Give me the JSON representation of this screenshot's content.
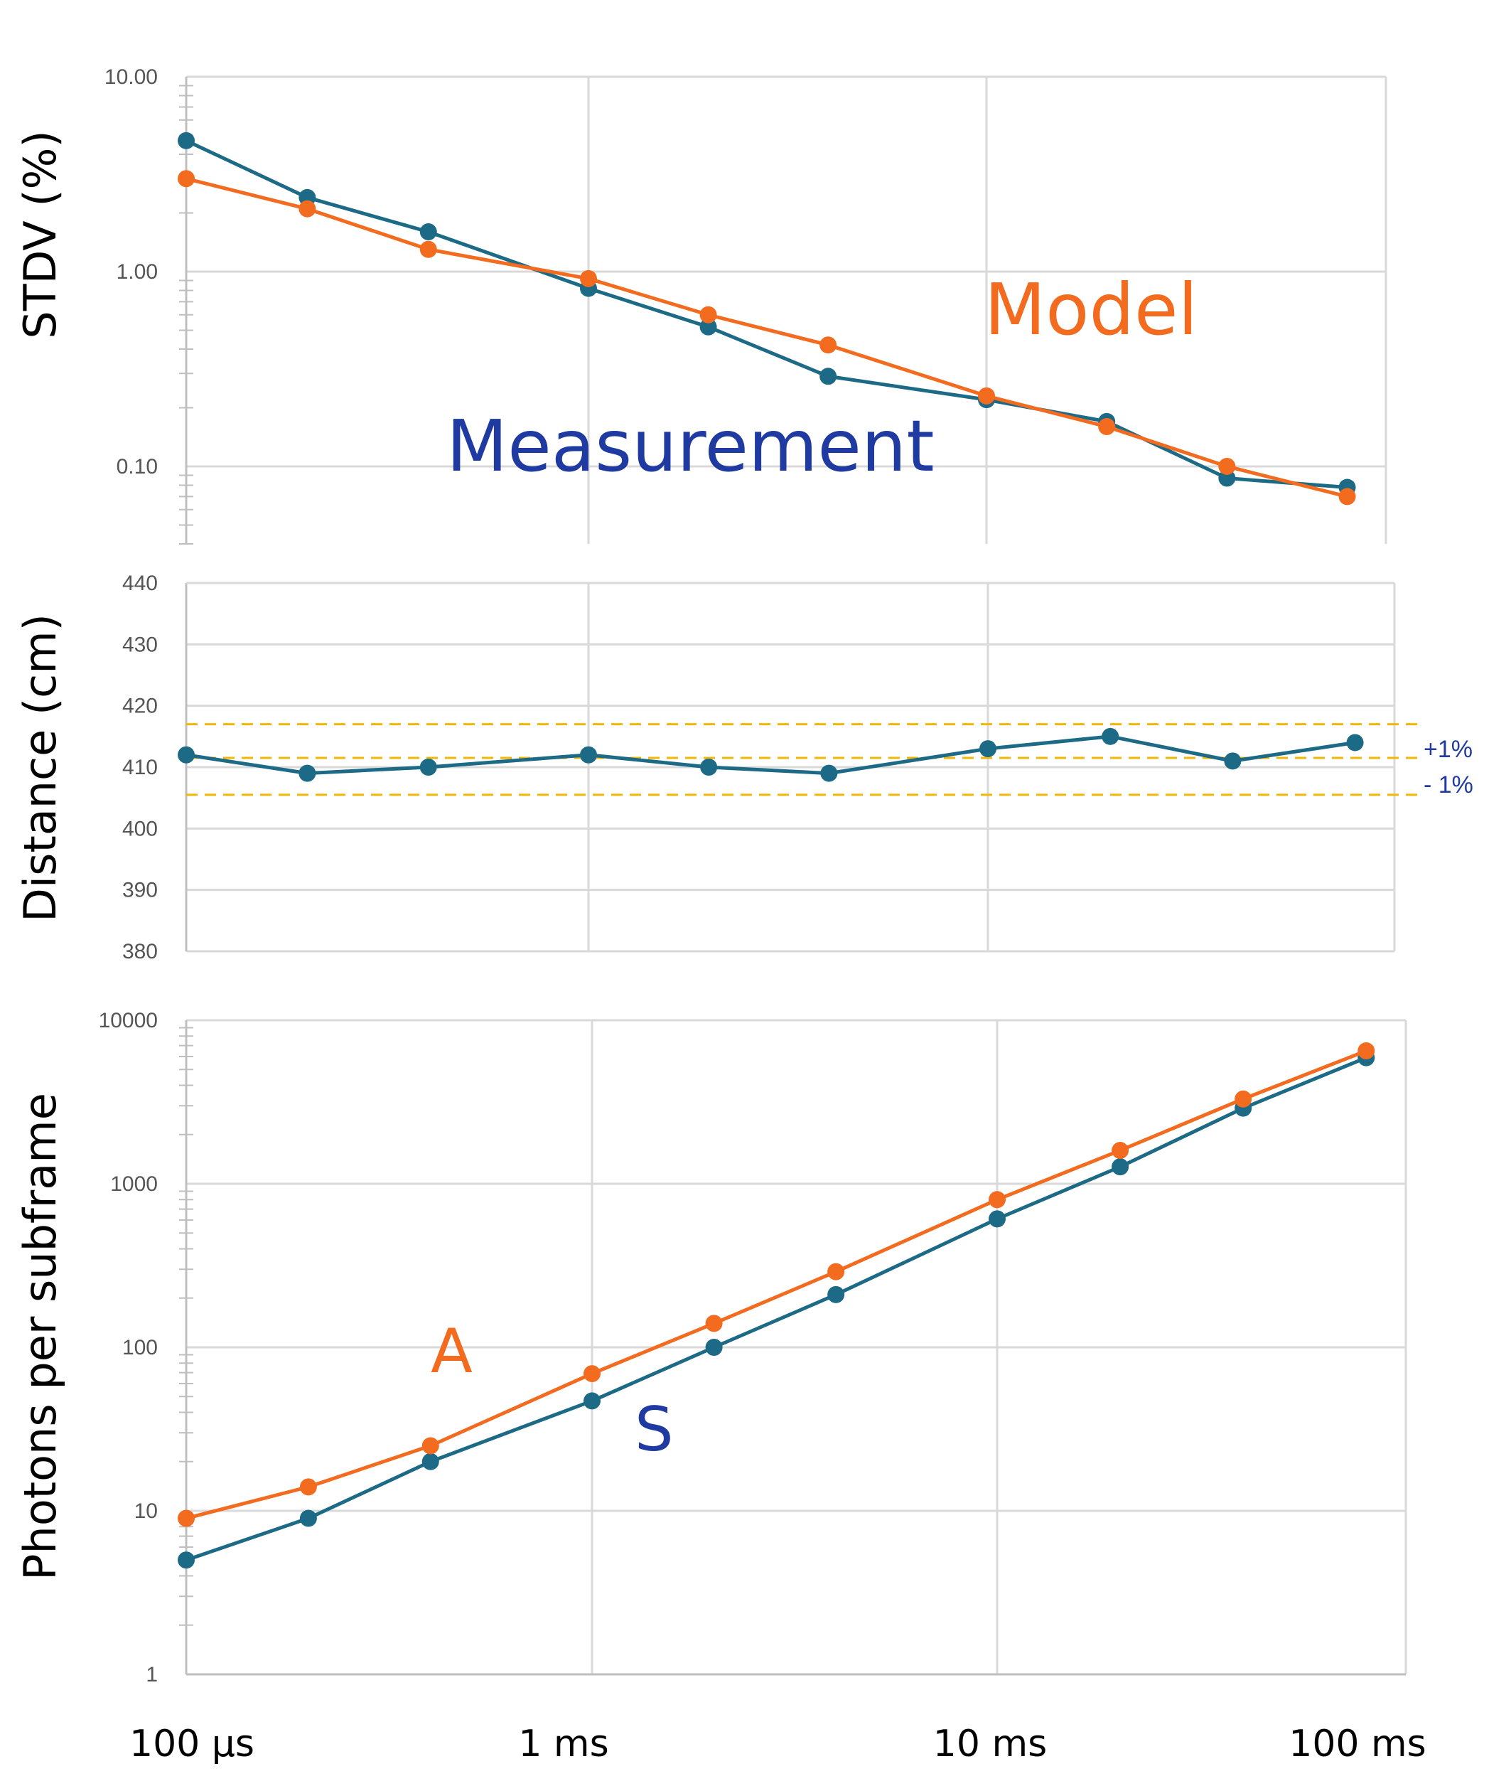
{
  "colors": {
    "measurement": "#1d6a86",
    "model": "#f26b1f",
    "annotation_blue": "#1f3aa0",
    "tolerance": "#f2b705",
    "grid": "#d9d9d9"
  },
  "shared_x": {
    "scale": "log",
    "xlim_ms": [
      0.1,
      100
    ],
    "tick_values_ms": [
      0.1,
      1,
      10,
      100
    ],
    "tick_labels": [
      "100 µs",
      "1 ms",
      "10 ms",
      "100 ms"
    ],
    "x_values_ms": [
      0.1,
      0.2,
      0.4,
      1,
      2,
      4,
      10,
      20,
      40,
      80
    ]
  },
  "chart_data": [
    {
      "type": "line",
      "title": "",
      "ylabel": "STDV (%)",
      "yscale": "log",
      "ylim": [
        0.04,
        10
      ],
      "ytick_values": [
        0.1,
        1,
        10
      ],
      "ytick_labels": [
        "0.10",
        "1.00",
        "10.00"
      ],
      "series": [
        {
          "name": "Measurement",
          "color_key": "measurement",
          "values": [
            4.7,
            2.4,
            1.6,
            0.82,
            0.52,
            0.29,
            0.22,
            0.17,
            0.087,
            0.078
          ]
        },
        {
          "name": "Model",
          "color_key": "model",
          "values": [
            3.0,
            2.1,
            1.3,
            0.92,
            0.6,
            0.42,
            0.23,
            0.16,
            0.1,
            0.07
          ]
        }
      ],
      "annotations": [
        {
          "text": "Model",
          "color_key": "model"
        },
        {
          "text": "Measurement",
          "color_key": "annotation_blue"
        }
      ]
    },
    {
      "type": "line",
      "title": "",
      "ylabel": "Distance (cm)",
      "yscale": "linear",
      "ylim": [
        380,
        440
      ],
      "ytick_values": [
        380,
        390,
        400,
        410,
        420,
        430,
        440
      ],
      "ytick_labels": [
        "380",
        "390",
        "400",
        "410",
        "420",
        "430",
        "440"
      ],
      "series": [
        {
          "name": "Distance",
          "color_key": "measurement",
          "values": [
            412,
            409,
            410,
            412,
            410,
            409,
            413,
            415,
            411,
            414
          ]
        }
      ],
      "reference_lines": [
        {
          "y": 417,
          "label": "+1%"
        },
        {
          "y": 411.5,
          "label": ""
        },
        {
          "y": 405.5,
          "label": "- 1%"
        }
      ]
    },
    {
      "type": "line",
      "title": "",
      "ylabel": "Photons per subframe",
      "yscale": "log",
      "ylim": [
        1,
        10000
      ],
      "ytick_values": [
        1,
        10,
        100,
        1000,
        10000
      ],
      "ytick_labels": [
        "1",
        "10",
        "100",
        "1000",
        "10000"
      ],
      "series": [
        {
          "name": "S",
          "color_key": "measurement",
          "values": [
            5,
            9,
            20,
            47,
            100,
            210,
            610,
            1270,
            2900,
            5900
          ]
        },
        {
          "name": "A",
          "color_key": "model",
          "values": [
            9,
            14,
            25,
            69,
            140,
            290,
            800,
            1600,
            3300,
            6500
          ]
        }
      ],
      "annotations": [
        {
          "text": "A",
          "color_key": "model"
        },
        {
          "text": "S",
          "color_key": "annotation_blue"
        }
      ]
    }
  ]
}
